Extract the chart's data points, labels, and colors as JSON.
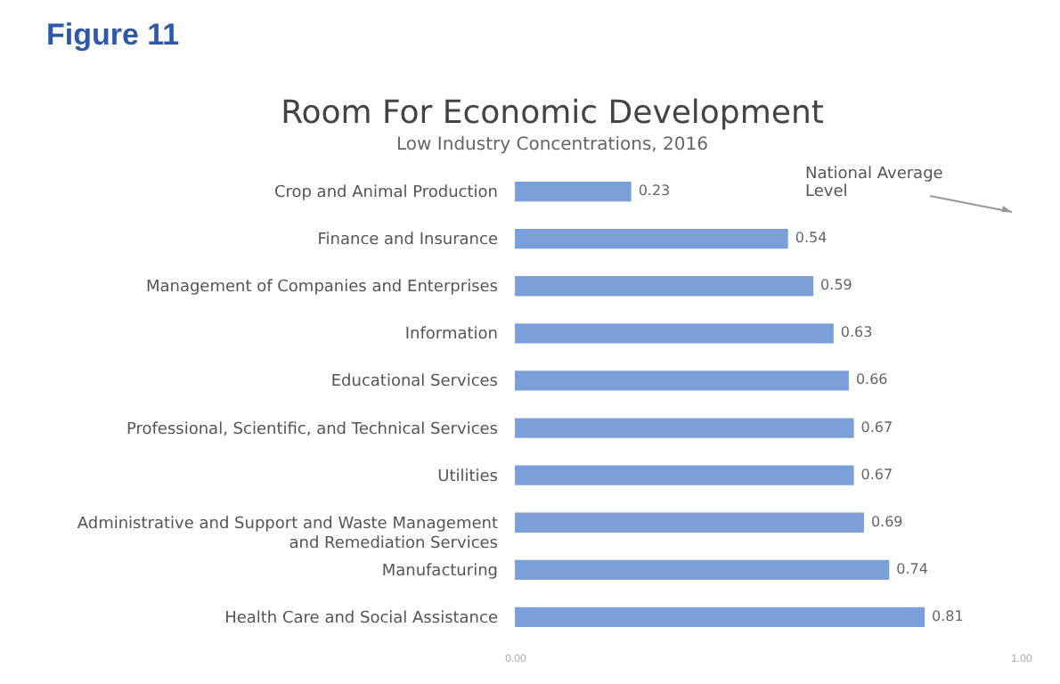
{
  "chart_data": {
    "type": "bar",
    "orientation": "horizontal",
    "title": "Room For Economic Development",
    "subtitle": "Low Industry Concentrations, 2016",
    "annotations": [
      "Figure 11",
      "National Average Level"
    ],
    "categories": [
      "Crop and Animal Production",
      "Finance and Insurance",
      "Management of Companies and Enterprises",
      "Information",
      "Educational Services",
      "Professional, Scientific, and Technical Services",
      "Utilities",
      "Administrative and Support and Waste Management and Remediation Services",
      "Manufacturing",
      "Health Care and Social Assistance"
    ],
    "values": [
      0.23,
      0.54,
      0.59,
      0.63,
      0.66,
      0.67,
      0.67,
      0.69,
      0.74,
      0.81
    ],
    "color": "#7b9fd9",
    "xlim": [
      0,
      1
    ],
    "xticks": [
      {
        "value": 0,
        "label": "0.00"
      },
      {
        "value": 1,
        "label": "1.00"
      }
    ],
    "grid": false,
    "data_labels": true
  }
}
